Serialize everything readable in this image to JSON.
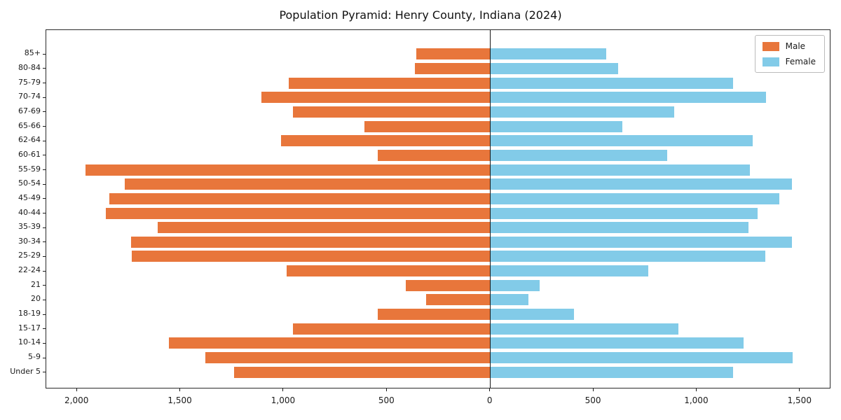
{
  "chart_data": {
    "type": "bar",
    "variant": "population-pyramid",
    "title": "Population Pyramid: Henry County, Indiana (2024)",
    "xlabel": "",
    "ylabel": "",
    "categories": [
      "85+",
      "80-84",
      "75-79",
      "70-74",
      "67-69",
      "65-66",
      "62-64",
      "60-61",
      "55-59",
      "50-54",
      "45-49",
      "40-44",
      "35-39",
      "30-34",
      "25-29",
      "22-24",
      "21",
      "20",
      "18-19",
      "15-17",
      "10-14",
      "5-9",
      "Under 5"
    ],
    "series": [
      {
        "name": "Male",
        "color": "#e8763b",
        "axis_direction": "left",
        "values": [
          360,
          365,
          975,
          1110,
          955,
          610,
          1015,
          545,
          1960,
          1770,
          1845,
          1860,
          1610,
          1740,
          1735,
          985,
          410,
          310,
          545,
          955,
          1555,
          1380,
          1240
        ]
      },
      {
        "name": "Female",
        "color": "#82cbe8",
        "axis_direction": "right",
        "values": [
          560,
          620,
          1175,
          1335,
          890,
          640,
          1270,
          855,
          1255,
          1460,
          1400,
          1295,
          1250,
          1460,
          1330,
          765,
          240,
          185,
          405,
          910,
          1225,
          1465,
          1175
        ]
      }
    ],
    "xlim": [
      -2150,
      1650
    ],
    "x_ticks": [
      {
        "value": -2000,
        "label": "2,000"
      },
      {
        "value": -1500,
        "label": "1,500"
      },
      {
        "value": -1000,
        "label": "1,000"
      },
      {
        "value": -500,
        "label": "500"
      },
      {
        "value": 0,
        "label": "0"
      },
      {
        "value": 500,
        "label": "500"
      },
      {
        "value": 1000,
        "label": "1,000"
      },
      {
        "value": 1500,
        "label": "1,500"
      }
    ],
    "legend": {
      "position": "upper right",
      "entries": [
        "Male",
        "Female"
      ]
    },
    "grid": false
  }
}
